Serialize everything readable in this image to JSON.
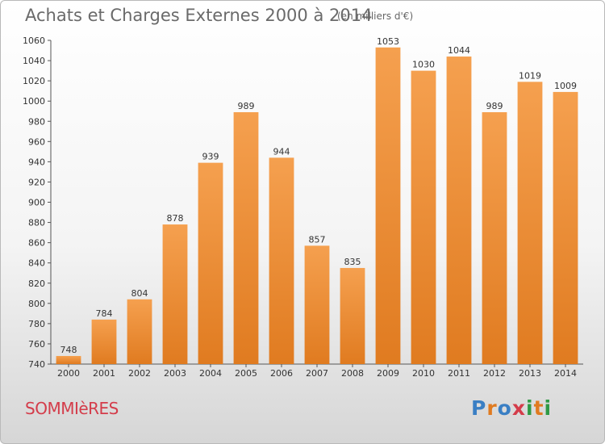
{
  "header": {
    "title": "Achats et Charges Externes 2000 à 2014",
    "subtitle": "(en milliers d'€)"
  },
  "footer": {
    "city": "SOMMIèRES",
    "logo_letters": [
      {
        "ch": "P",
        "color": "#3a7fc4"
      },
      {
        "ch": "r",
        "color": "#e07b20"
      },
      {
        "ch": "o",
        "color": "#3a7fc4"
      },
      {
        "ch": "x",
        "color": "#d43c4a"
      },
      {
        "ch": "i",
        "color": "#2f9a45"
      },
      {
        "ch": "t",
        "color": "#e07b20"
      },
      {
        "ch": "i",
        "color": "#2f9a45"
      }
    ]
  },
  "chart_data": {
    "type": "bar",
    "categories": [
      "2000",
      "2001",
      "2002",
      "2003",
      "2004",
      "2005",
      "2006",
      "2007",
      "2008",
      "2009",
      "2010",
      "2011",
      "2012",
      "2013",
      "2014"
    ],
    "values": [
      748,
      784,
      804,
      878,
      939,
      989,
      944,
      857,
      835,
      1053,
      1030,
      1044,
      989,
      1019,
      1009
    ],
    "ylim": [
      740,
      1060
    ],
    "ytick_step": 20,
    "grid": false,
    "legend": "none",
    "bar_color": "#e07b20",
    "bar_highlight": "#f5a04f",
    "label_color": "#333333"
  }
}
